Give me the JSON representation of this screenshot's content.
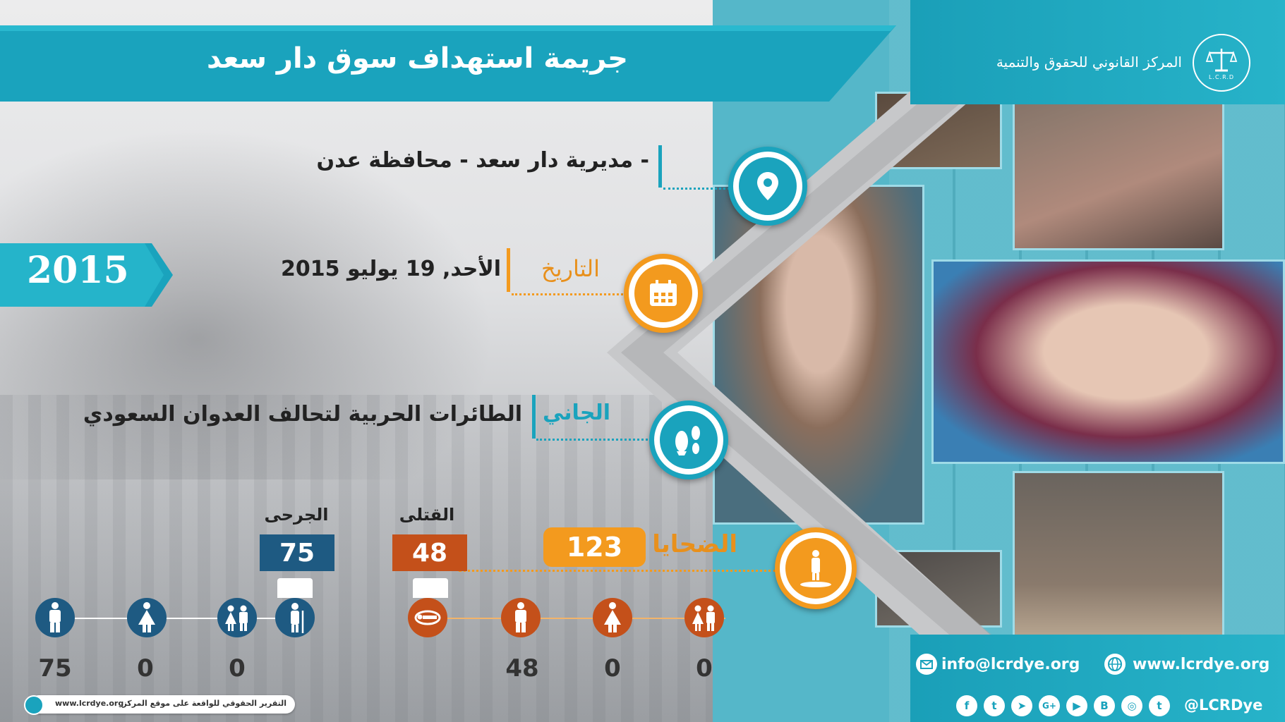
{
  "header": {
    "title": "جريمة استهداف سوق دار سعد",
    "org_name": "المركز القانوني للحقوق والتنمية",
    "logo_text": "L.C.R.D"
  },
  "location": {
    "text": "- مديرية دار سعد - محافظة عدن"
  },
  "date": {
    "label": "التاريخ",
    "value": "الأحد, 19 يوليو 2015"
  },
  "year": "2015",
  "perpetrator": {
    "label": "الجاني",
    "value": "الطائرات الحربية لتحالف العدوان السعودي"
  },
  "victims": {
    "label": "الضحايا",
    "total": "123",
    "killed_label": "القتلى",
    "killed": "48",
    "injured_label": "الجرحى",
    "injured": "75",
    "killed_breakdown": {
      "men": "48",
      "women": "0",
      "children": "0"
    },
    "injured_breakdown": {
      "men": "75",
      "women": "0",
      "children": "0"
    }
  },
  "footer": {
    "email": "info@lcrdye.org",
    "website": "www.lcrdye.org",
    "handle": "@LCRDye",
    "report_link": "التقرير الحقوقي للواقعة على موقع المركز",
    "report_url": "www.lcrdye.org"
  },
  "colors": {
    "teal": "#1aa3bd",
    "orange": "#f39a1e",
    "dark_orange": "#c4501a",
    "navy": "#1e5a82"
  },
  "icons": [
    "location-pin-icon",
    "calendar-icon",
    "bomb-icon",
    "victim-icon",
    "killed-icon",
    "injured-icon",
    "man-icon",
    "woman-icon",
    "children-icon",
    "email-icon",
    "globe-icon",
    "facebook-icon",
    "twitter-icon",
    "telegram-icon",
    "google-plus-icon",
    "youtube-icon",
    "blogger-icon",
    "instagram-icon",
    "tumblr-icon"
  ]
}
